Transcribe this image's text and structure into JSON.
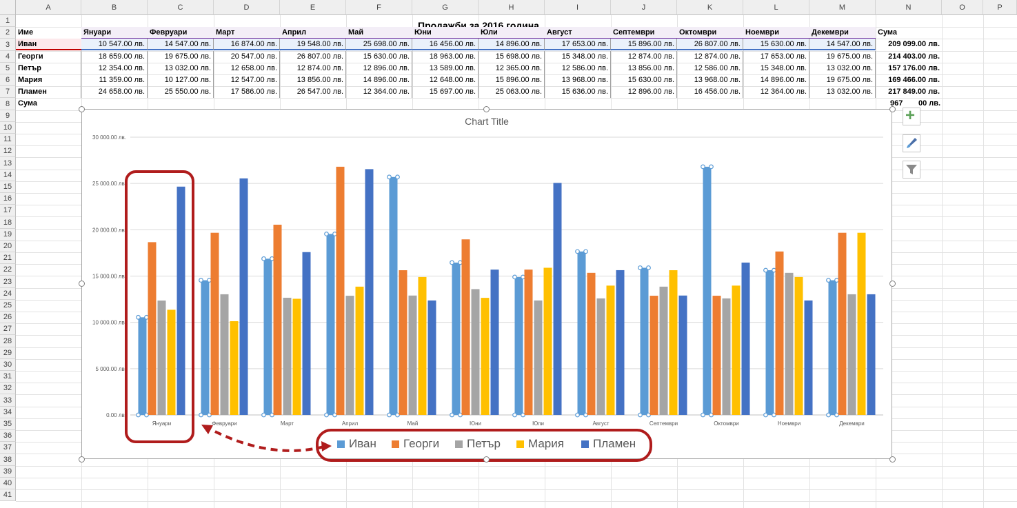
{
  "columns": [
    "A",
    "B",
    "C",
    "D",
    "E",
    "F",
    "G",
    "H",
    "I",
    "J",
    "K",
    "L",
    "M",
    "N",
    "O",
    "P"
  ],
  "rows": [
    "1",
    "2",
    "3",
    "4",
    "5",
    "6",
    "7",
    "8",
    "9",
    "10",
    "11",
    "12",
    "13",
    "14",
    "15",
    "16",
    "17",
    "18",
    "19",
    "20",
    "21",
    "22",
    "23",
    "24",
    "25",
    "26",
    "27",
    "28",
    "29",
    "30",
    "31",
    "32",
    "33",
    "34",
    "35",
    "36",
    "37",
    "38",
    "39",
    "40",
    "41"
  ],
  "sheet": {
    "title": "Продажби за 2016 година",
    "header_name": "Име",
    "header_sum": "Сума",
    "months": [
      "Януари",
      "Февруари",
      "Март",
      "Април",
      "Май",
      "Юни",
      "Юли",
      "Август",
      "Септември",
      "Октомври",
      "Ноември",
      "Декември"
    ],
    "people": [
      {
        "name": "Иван",
        "values": [
          "10 547.00 лв.",
          "14 547.00 лв.",
          "16 874.00 лв.",
          "19 548.00 лв.",
          "25 698.00 лв.",
          "16 456.00 лв.",
          "14 896.00 лв.",
          "17 653.00 лв.",
          "15 896.00 лв.",
          "26 807.00 лв.",
          "15 630.00 лв.",
          "14 547.00 лв."
        ],
        "sum": "209 099.00 лв."
      },
      {
        "name": "Георги",
        "values": [
          "18 659.00 лв.",
          "19 675.00 лв.",
          "20 547.00 лв.",
          "26 807.00 лв.",
          "15 630.00 лв.",
          "18 963.00 лв.",
          "15 698.00 лв.",
          "15 348.00 лв.",
          "12 874.00 лв.",
          "12 874.00 лв.",
          "17 653.00 лв.",
          "19 675.00 лв."
        ],
        "sum": "214 403.00 лв."
      },
      {
        "name": "Петър",
        "values": [
          "12 354.00 лв.",
          "13 032.00 лв.",
          "12 658.00 лв.",
          "12 874.00 лв.",
          "12 896.00 лв.",
          "13 589.00 лв.",
          "12 365.00 лв.",
          "12 586.00 лв.",
          "13 856.00 лв.",
          "12 586.00 лв.",
          "15 348.00 лв.",
          "13 032.00 лв."
        ],
        "sum": "157 176.00 лв."
      },
      {
        "name": "Мария",
        "values": [
          "11 359.00 лв.",
          "10 127.00 лв.",
          "12 547.00 лв.",
          "13 856.00 лв.",
          "14 896.00 лв.",
          "12 648.00 лв.",
          "15 896.00 лв.",
          "13 968.00 лв.",
          "15 630.00 лв.",
          "13 968.00 лв.",
          "14 896.00 лв.",
          "19 675.00 лв."
        ],
        "sum": "169 466.00 лв."
      },
      {
        "name": "Пламен",
        "values": [
          "24 658.00 лв.",
          "25 550.00 лв.",
          "17 586.00 лв.",
          "26 547.00 лв.",
          "12 364.00 лв.",
          "15 697.00 лв.",
          "25 063.00 лв.",
          "15 636.00 лв.",
          "12 896.00 лв.",
          "16 456.00 лв.",
          "12 364.00 лв.",
          "13 032.00 лв."
        ],
        "sum": "217 849.00 лв."
      }
    ],
    "sum_label": "Сума",
    "partial_total": "967",
    "partial_total_suffix": "00 лв."
  },
  "side_buttons": {
    "elements_icon": "plus-icon",
    "style_icon": "brush-icon",
    "filter_icon": "funnel-icon"
  },
  "colors": {
    "ivan": "#5b9bd5",
    "georgi": "#ed7d31",
    "petar": "#a5a5a5",
    "maria": "#ffc000",
    "plamen": "#4472c4",
    "annotation": "#b01c1c"
  },
  "chart_data": {
    "type": "bar",
    "title": "Chart Title",
    "categories": [
      "Януари",
      "Февруари",
      "Март",
      "Април",
      "Май",
      "Юни",
      "Юли",
      "Август",
      "Септември",
      "Октомври",
      "Ноември",
      "Декември"
    ],
    "ylim": [
      0,
      30000
    ],
    "y_ticks": [
      "0.00 лв.",
      "5 000.00 лв.",
      "10 000.00 лв.",
      "15 000.00 лв.",
      "20 000.00 лв.",
      "25 000.00 лв.",
      "30 000.00 лв."
    ],
    "y_tick_values": [
      0,
      5000,
      10000,
      15000,
      20000,
      25000,
      30000
    ],
    "grid": true,
    "legend_position": "bottom",
    "series": [
      {
        "name": "Иван",
        "color": "#5b9bd5",
        "values": [
          10547,
          14547,
          16874,
          19548,
          25698,
          16456,
          14896,
          17653,
          15896,
          26807,
          15630,
          14547
        ]
      },
      {
        "name": "Георги",
        "color": "#ed7d31",
        "values": [
          18659,
          19675,
          20547,
          26807,
          15630,
          18963,
          15698,
          15348,
          12874,
          12874,
          17653,
          19675
        ]
      },
      {
        "name": "Петър",
        "color": "#a5a5a5",
        "values": [
          12354,
          13032,
          12658,
          12874,
          12896,
          13589,
          12365,
          12586,
          13856,
          12586,
          15348,
          13032
        ]
      },
      {
        "name": "Мария",
        "color": "#ffc000",
        "values": [
          11359,
          10127,
          12547,
          13856,
          14896,
          12648,
          15896,
          13968,
          15630,
          13968,
          14896,
          19675
        ]
      },
      {
        "name": "Пламен",
        "color": "#4472c4",
        "values": [
          24658,
          25550,
          17586,
          26547,
          12364,
          15697,
          25063,
          15636,
          12896,
          16456,
          12364,
          13032
        ]
      }
    ]
  }
}
